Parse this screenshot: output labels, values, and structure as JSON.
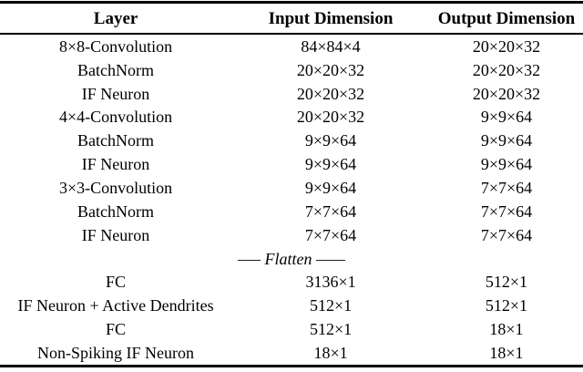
{
  "table": {
    "header": {
      "layer": "Layer",
      "input": "Input Dimension",
      "output": "Output Dimension"
    },
    "rows": [
      {
        "layer": "8×8-Convolution",
        "input": "84×84×4",
        "output": "20×20×32"
      },
      {
        "layer": "BatchNorm",
        "input": "20×20×32",
        "output": "20×20×32"
      },
      {
        "layer": "IF Neuron",
        "input": "20×20×32",
        "output": "20×20×32"
      },
      {
        "layer": "4×4-Convolution",
        "input": "20×20×32",
        "output": "9×9×64"
      },
      {
        "layer": "BatchNorm",
        "input": "9×9×64",
        "output": "9×9×64"
      },
      {
        "layer": "IF Neuron",
        "input": "9×9×64",
        "output": "9×9×64"
      },
      {
        "layer": "3×3-Convolution",
        "input": "9×9×64",
        "output": "7×7×64"
      },
      {
        "layer": "BatchNorm",
        "input": "7×7×64",
        "output": "7×7×64"
      },
      {
        "layer": "IF Neuron",
        "input": "7×7×64",
        "output": "7×7×64"
      },
      {
        "layer": "FC",
        "input": "3136×1",
        "output": "512×1"
      },
      {
        "layer": "IF Neuron + Active Dendrites",
        "input": "512×1",
        "output": "512×1"
      },
      {
        "layer": "FC",
        "input": "512×1",
        "output": "18×1"
      },
      {
        "layer": "Non-Spiking IF Neuron",
        "input": "18×1",
        "output": "18×1"
      }
    ],
    "flatten_divider": "—– Flatten ——",
    "colors": {
      "text": "#000000",
      "background": "#ffffff",
      "rule": "#000000"
    }
  }
}
